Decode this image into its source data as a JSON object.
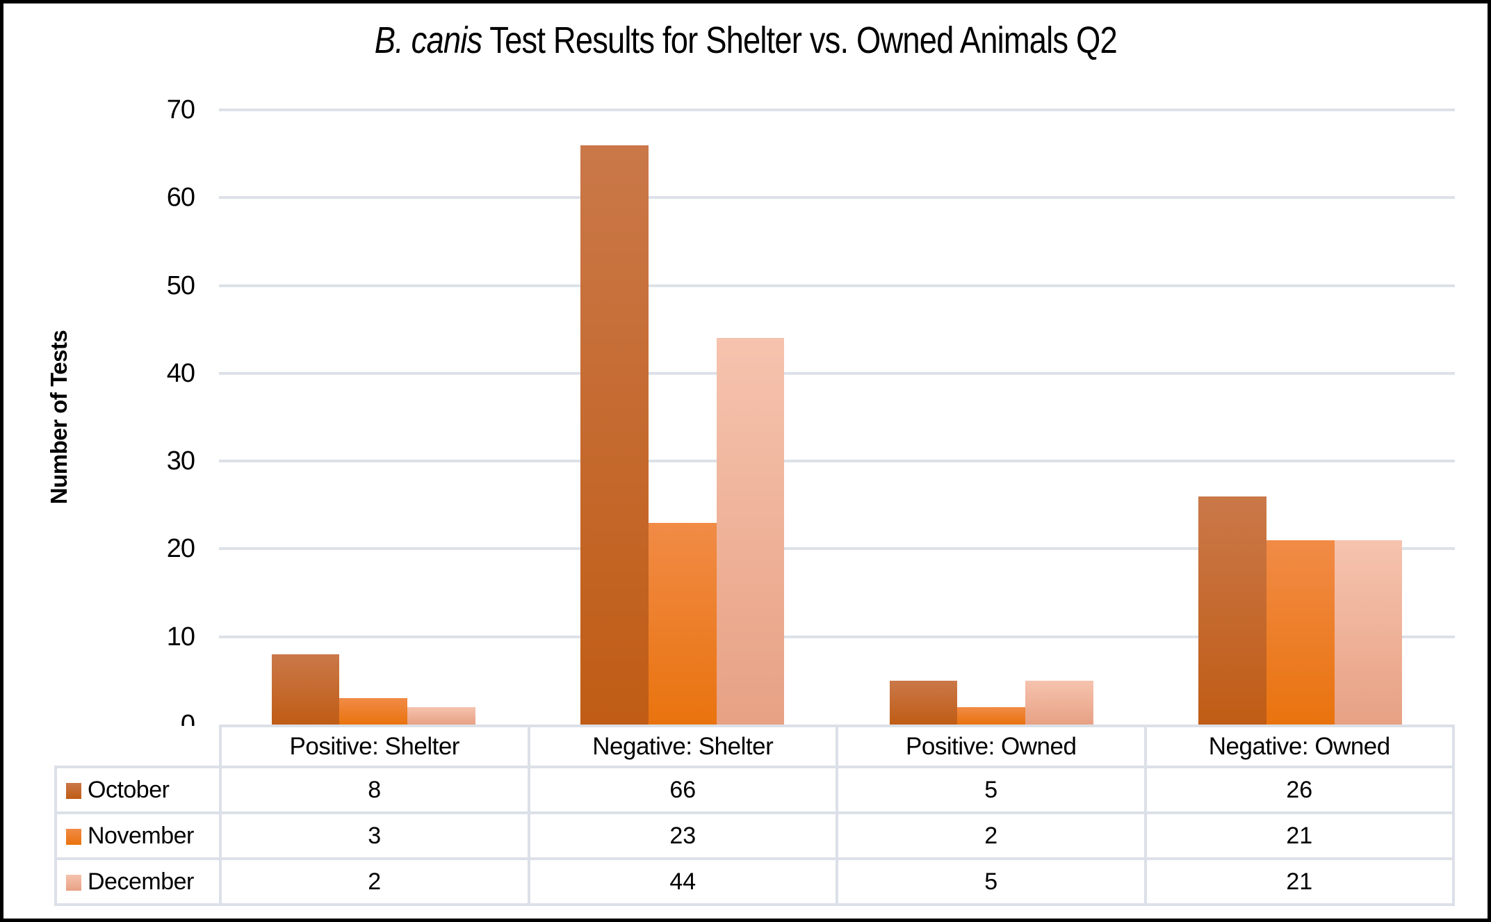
{
  "title": {
    "italic": "B. canis",
    "rest": " Test Results for Shelter vs. Owned Animals Q2"
  },
  "colors": {
    "background": "#FFFFFF",
    "frame": "#000000",
    "grid_line": "#DDE1E8",
    "table_border": "#DCE0E8"
  },
  "chart_data": {
    "type": "bar",
    "title": "B. canis Test Results for Shelter vs. Owned Animals Q2",
    "xlabel": "",
    "ylabel": "Number of Tests",
    "ylim": [
      0,
      70
    ],
    "ytick_step": 10,
    "grid": true,
    "legend_position": "table-left",
    "categories": [
      "Positive: Shelter",
      "Negative: Shelter",
      "Positive: Owned",
      "Negative: Owned"
    ],
    "series": [
      {
        "name": "October",
        "values": [
          8,
          66,
          5,
          26
        ],
        "legend_color": "#C25B1D",
        "gradient_top": "#CA7849",
        "gradient_bottom": "#C05C15"
      },
      {
        "name": "November",
        "values": [
          3,
          23,
          2,
          21
        ],
        "legend_color": "#EE7D2E",
        "gradient_top": "#F18B46",
        "gradient_bottom": "#E9730E"
      },
      {
        "name": "December",
        "values": [
          2,
          44,
          5,
          21
        ],
        "legend_color": "#F4BCA3",
        "gradient_top": "#F6C3AE",
        "gradient_bottom": "#E7A184"
      }
    ]
  }
}
